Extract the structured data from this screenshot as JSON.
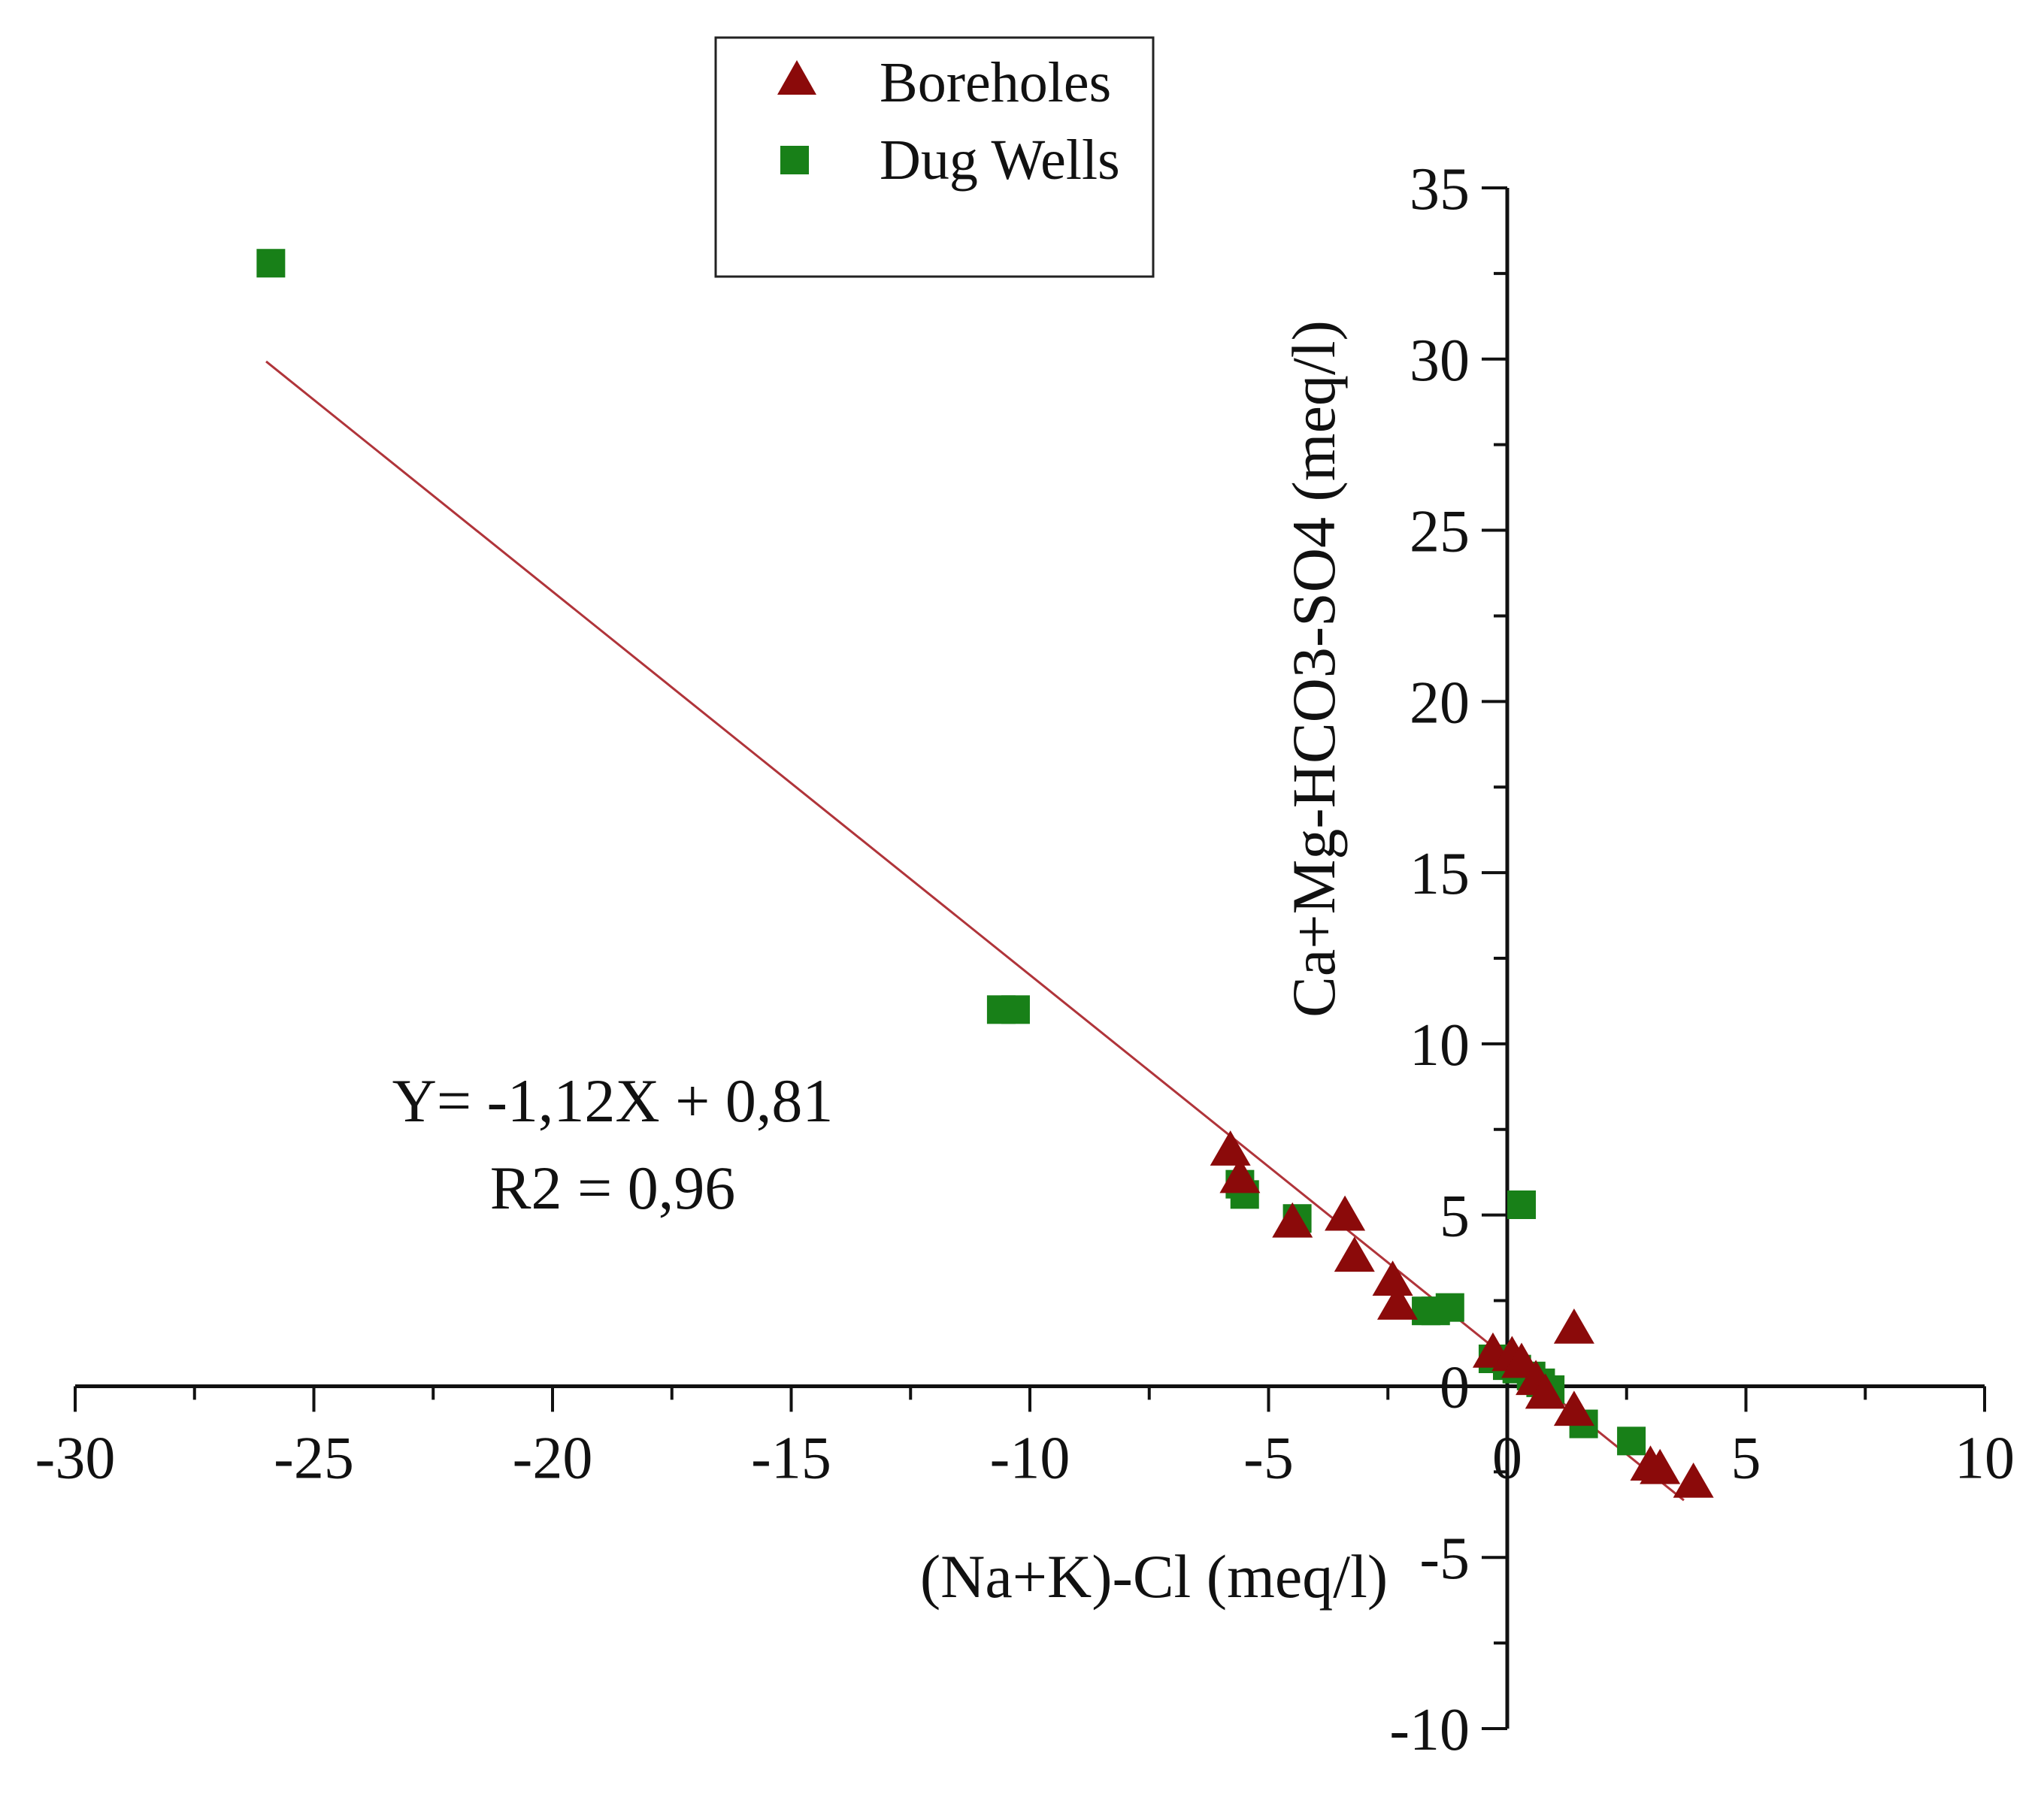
{
  "chart_data": {
    "type": "scatter",
    "title": "",
    "xlabel": "(Na+K)-Cl (meq/l)",
    "ylabel": "Ca+Mg-HCO3-SO4 (meq/l)",
    "xlim": [
      -30,
      10
    ],
    "ylim": [
      -10,
      35
    ],
    "x_ticks": [
      -30,
      -25,
      -20,
      -15,
      -10,
      -5,
      0,
      5,
      10
    ],
    "y_ticks": [
      -10,
      -5,
      0,
      5,
      10,
      15,
      20,
      25,
      30,
      35
    ],
    "x_tick_labels": [
      "-30",
      "-25",
      "-20",
      "-15",
      "-10",
      "-5",
      "0",
      "5",
      "10"
    ],
    "y_tick_labels": [
      "-10",
      "-5",
      "0",
      "5",
      "10",
      "15",
      "20",
      "25",
      "30",
      "35"
    ],
    "grid": false,
    "legend": {
      "position": "top-left",
      "entries": [
        "Boreholes",
        "Dug Wells"
      ]
    },
    "series": [
      {
        "name": "Boreholes",
        "marker": "triangle",
        "color": "#8b0a0a",
        "points": [
          [
            -5.8,
            6.9
          ],
          [
            -5.6,
            6.1
          ],
          [
            -4.5,
            4.8
          ],
          [
            -3.4,
            5.0
          ],
          [
            -3.2,
            3.8
          ],
          [
            -2.4,
            3.1
          ],
          [
            -2.3,
            2.4
          ],
          [
            -0.3,
            1.0
          ],
          [
            0.1,
            0.9
          ],
          [
            0.3,
            0.7
          ],
          [
            0.6,
            0.2
          ],
          [
            0.8,
            -0.2
          ],
          [
            1.4,
            1.7
          ],
          [
            1.4,
            -0.7
          ],
          [
            3.0,
            -2.3
          ],
          [
            3.2,
            -2.4
          ],
          [
            3.9,
            -2.8
          ]
        ]
      },
      {
        "name": "Dug Wells",
        "marker": "square",
        "color": "#188018",
        "points": [
          [
            -25.9,
            32.8
          ],
          [
            -10.6,
            11.0
          ],
          [
            -10.3,
            11.0
          ],
          [
            -5.6,
            5.9
          ],
          [
            -5.5,
            5.6
          ],
          [
            -4.4,
            4.9
          ],
          [
            -1.7,
            2.2
          ],
          [
            -1.5,
            2.2
          ],
          [
            -1.2,
            2.3
          ],
          [
            -0.3,
            0.8
          ],
          [
            0.0,
            0.6
          ],
          [
            0.2,
            0.5
          ],
          [
            0.3,
            5.3
          ],
          [
            0.5,
            0.3
          ],
          [
            0.7,
            0.1
          ],
          [
            0.9,
            -0.1
          ],
          [
            1.6,
            -1.1
          ],
          [
            2.6,
            -1.6
          ]
        ]
      }
    ],
    "trendline": {
      "from": [
        -26,
        29.93
      ],
      "to": [
        3.7,
        -3.33
      ],
      "color": "#b0343a"
    },
    "annotations": [
      "Y= -1,12X + 0,81",
      "R2 = 0,96"
    ]
  }
}
